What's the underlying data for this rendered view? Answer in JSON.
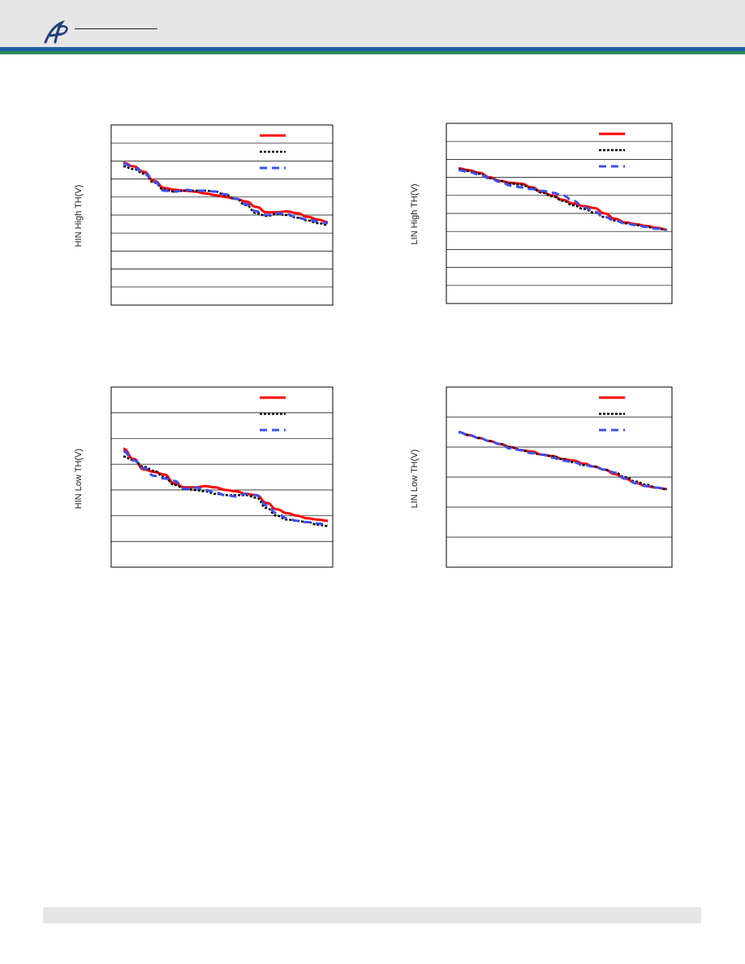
{
  "header": {
    "logo_icon": "ap-script-logo",
    "colors": {
      "bar": "#e6e6e6",
      "stripe_blue": "#1f5fa6",
      "stripe_green": "#2e8b57"
    }
  },
  "series_styles": [
    {
      "color": "#ff0000",
      "style": "solid"
    },
    {
      "color": "#000000",
      "style": "dotted"
    },
    {
      "color": "#3c50f0",
      "style": "dashed"
    }
  ],
  "chart_data": [
    {
      "type": "line",
      "ylabel": "HIN High TH(V)",
      "gridlines": 10,
      "grid": true,
      "legend": "top-right",
      "x": [
        0,
        1,
        2,
        3,
        4,
        5,
        6,
        7,
        8,
        9,
        10,
        11,
        12,
        13,
        14,
        15,
        16,
        17,
        18,
        19,
        20
      ],
      "ylim": [
        0,
        10
      ],
      "series": [
        {
          "values": [
            7.9,
            7.7,
            7.4,
            6.9,
            6.5,
            6.4,
            6.35,
            6.3,
            6.2,
            6.1,
            6.0,
            5.9,
            5.75,
            5.45,
            5.15,
            5.15,
            5.2,
            5.1,
            4.9,
            4.75,
            4.6
          ]
        },
        {
          "values": [
            7.7,
            7.55,
            7.3,
            6.8,
            6.4,
            6.3,
            6.35,
            6.35,
            6.35,
            6.3,
            6.1,
            5.9,
            5.55,
            5.1,
            4.95,
            5.05,
            5.0,
            4.85,
            4.7,
            4.55,
            4.45
          ]
        },
        {
          "values": [
            7.85,
            7.65,
            7.35,
            6.85,
            6.35,
            6.3,
            6.4,
            6.35,
            6.35,
            6.3,
            6.15,
            5.9,
            5.6,
            5.2,
            5.0,
            5.1,
            5.05,
            4.85,
            4.75,
            4.65,
            4.55
          ]
        }
      ]
    },
    {
      "type": "line",
      "ylabel": "LIN High TH(V)",
      "gridlines": 10,
      "grid": true,
      "legend": "top-right",
      "x": [
        0,
        1,
        2,
        3,
        4,
        5,
        6,
        7,
        8,
        9,
        10,
        11,
        12,
        13,
        14,
        15,
        16,
        17,
        18,
        19,
        20
      ],
      "ylim": [
        0,
        10
      ],
      "series": [
        {
          "values": [
            7.5,
            7.4,
            7.25,
            7.0,
            6.8,
            6.7,
            6.65,
            6.45,
            6.2,
            6.0,
            5.75,
            5.55,
            5.4,
            5.3,
            5.0,
            4.7,
            4.5,
            4.4,
            4.3,
            4.2,
            4.1
          ]
        },
        {
          "values": [
            7.45,
            7.35,
            7.2,
            6.95,
            6.8,
            6.65,
            6.6,
            6.4,
            6.15,
            5.95,
            5.7,
            5.45,
            5.25,
            5.05,
            4.8,
            4.6,
            4.45,
            4.35,
            4.25,
            4.15,
            4.1
          ]
        },
        {
          "values": [
            7.4,
            7.3,
            7.15,
            6.95,
            6.75,
            6.55,
            6.45,
            6.35,
            6.25,
            6.15,
            6.0,
            5.7,
            5.35,
            5.1,
            4.8,
            4.6,
            4.45,
            4.35,
            4.25,
            4.15,
            4.1
          ]
        }
      ]
    },
    {
      "type": "line",
      "ylabel": "HIN Low TH(V)",
      "gridlines": 7,
      "grid": true,
      "legend": "top-right",
      "x": [
        0,
        1,
        2,
        3,
        4,
        5,
        6,
        7,
        8,
        9,
        10,
        11,
        12,
        13,
        14,
        15,
        16,
        17,
        18,
        19,
        20
      ],
      "ylim": [
        0,
        7
      ],
      "series": [
        {
          "values": [
            4.6,
            4.2,
            3.8,
            3.7,
            3.6,
            3.25,
            3.1,
            3.1,
            3.15,
            3.1,
            3.0,
            2.95,
            2.85,
            2.8,
            2.5,
            2.25,
            2.1,
            2.0,
            1.9,
            1.85,
            1.8
          ]
        },
        {
          "values": [
            4.3,
            4.15,
            3.9,
            3.75,
            3.5,
            3.2,
            3.05,
            3.0,
            2.95,
            2.85,
            2.8,
            2.8,
            2.8,
            2.7,
            2.3,
            2.0,
            1.85,
            1.8,
            1.75,
            1.65,
            1.6
          ]
        },
        {
          "values": [
            4.5,
            4.15,
            3.85,
            3.55,
            3.45,
            3.35,
            3.05,
            3.1,
            3.0,
            2.9,
            2.8,
            2.75,
            2.85,
            2.8,
            2.4,
            2.1,
            1.9,
            1.8,
            1.75,
            1.7,
            1.65
          ]
        }
      ]
    },
    {
      "type": "line",
      "ylabel": "LIN Low TH(V)",
      "gridlines": 6,
      "grid": true,
      "legend": "top-right",
      "x": [
        0,
        1,
        2,
        3,
        4,
        5,
        6,
        7,
        8,
        9,
        10,
        11,
        12,
        13,
        14,
        15,
        16,
        17,
        18,
        19,
        20
      ],
      "ylim": [
        0,
        6
      ],
      "series": [
        {
          "values": [
            4.5,
            4.4,
            4.3,
            4.2,
            4.1,
            4.0,
            3.9,
            3.85,
            3.75,
            3.7,
            3.6,
            3.55,
            3.45,
            3.35,
            3.25,
            3.1,
            2.95,
            2.8,
            2.7,
            2.65,
            2.6
          ]
        },
        {
          "values": [
            4.5,
            4.4,
            4.3,
            4.2,
            4.1,
            4.0,
            3.9,
            3.8,
            3.75,
            3.7,
            3.6,
            3.5,
            3.4,
            3.35,
            3.25,
            3.15,
            3.0,
            2.85,
            2.75,
            2.65,
            2.6
          ]
        },
        {
          "values": [
            4.5,
            4.4,
            4.3,
            4.2,
            4.1,
            3.95,
            3.9,
            3.8,
            3.75,
            3.65,
            3.55,
            3.5,
            3.4,
            3.35,
            3.25,
            3.15,
            2.95,
            2.8,
            2.7,
            2.65,
            2.6
          ]
        }
      ]
    }
  ]
}
